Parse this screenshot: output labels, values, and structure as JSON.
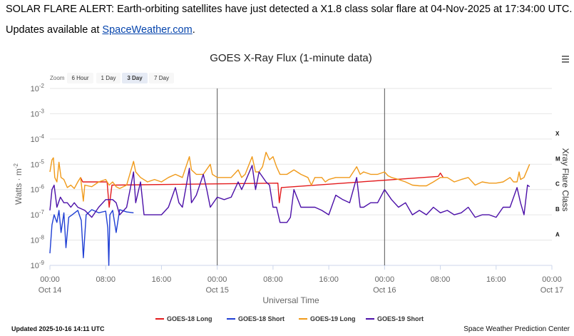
{
  "alert": {
    "text": "SOLAR FLARE ALERT: Earth-orbiting satellites have just detected a X1.8 class solar flare at 04-Nov-2025 at 17:34:00 UTC."
  },
  "updates": {
    "prefix": "Updates available at ",
    "link_text": "SpaceWeather.com",
    "suffix": "."
  },
  "zoom": {
    "label": "Zoom",
    "buttons": [
      "6 Hour",
      "1 Day",
      "3 Day",
      "7 Day"
    ],
    "selected": "3 Day"
  },
  "menu_icon": "hamburger-menu-icon",
  "footer": {
    "updated": "Updated 2025-10-16 14:11 UTC",
    "credit": "Space Weather Prediction Center"
  },
  "chart_data": {
    "type": "line",
    "title": "GOES X-Ray Flux (1-minute data)",
    "xlabel": "Universal Time",
    "ylabel": "Watts · m",
    "ylabel_superscript": "-2",
    "ylabel_right": "Xray Flare Class",
    "y_scale": "log",
    "ylim": [
      1e-09,
      0.01
    ],
    "y_ticks": [
      {
        "base": "10",
        "exp": "-2"
      },
      {
        "base": "10",
        "exp": "-3"
      },
      {
        "base": "10",
        "exp": "-4"
      },
      {
        "base": "10",
        "exp": "-5"
      },
      {
        "base": "10",
        "exp": "-6"
      },
      {
        "base": "10",
        "exp": "-7"
      },
      {
        "base": "10",
        "exp": "-8"
      },
      {
        "base": "10",
        "exp": "-9"
      }
    ],
    "x_unit": "hours since 2025-10-14 00:00 UTC",
    "xlim": [
      0,
      72
    ],
    "x_ticks": [
      {
        "hour": 0,
        "time": "00:00",
        "date": "Oct 14"
      },
      {
        "hour": 8,
        "time": "08:00",
        "date": ""
      },
      {
        "hour": 16,
        "time": "16:00",
        "date": ""
      },
      {
        "hour": 24,
        "time": "00:00",
        "date": "Oct 15"
      },
      {
        "hour": 32,
        "time": "08:00",
        "date": ""
      },
      {
        "hour": 40,
        "time": "16:00",
        "date": ""
      },
      {
        "hour": 48,
        "time": "00:00",
        "date": "Oct 16"
      },
      {
        "hour": 56,
        "time": "08:00",
        "date": ""
      },
      {
        "hour": 64,
        "time": "16:00",
        "date": ""
      },
      {
        "hour": 72,
        "time": "00:00",
        "date": "Oct 17"
      }
    ],
    "day_dividers": [
      24,
      48
    ],
    "flare_classes": [
      {
        "label": "X",
        "flux": 0.0001
      },
      {
        "label": "M",
        "flux": 1e-05
      },
      {
        "label": "C",
        "flux": 1e-06
      },
      {
        "label": "B",
        "flux": 1e-07
      },
      {
        "label": "A",
        "flux": 1e-08
      }
    ],
    "series": [
      {
        "name": "GOES-18 Long",
        "color": "#e31a1c",
        "points": [
          [
            4.4,
            3e-06
          ],
          [
            4.7,
            2e-06
          ],
          [
            8.2,
            2e-06
          ],
          [
            8.5,
            2e-07
          ],
          [
            8.9,
            1.5e-06
          ],
          [
            32.7,
            1.8e-06
          ],
          [
            32.9,
            3e-07
          ],
          [
            33.2,
            1.2e-06
          ],
          [
            55.7,
            3.3e-06
          ],
          [
            56.0,
            4.5e-06
          ],
          [
            56.4,
            3e-06
          ]
        ]
      },
      {
        "name": "GOES-18 Short",
        "color": "#1f3fd4",
        "points": [
          [
            0.0,
            3e-09
          ],
          [
            0.3,
            4e-08
          ],
          [
            0.6,
            1e-07
          ],
          [
            1.0,
            5e-08
          ],
          [
            1.3,
            1.5e-07
          ],
          [
            1.6,
            2e-08
          ],
          [
            2.0,
            1.2e-07
          ],
          [
            2.3,
            5e-09
          ],
          [
            2.7,
            8e-08
          ],
          [
            3.2,
            1e-07
          ],
          [
            4.0,
            1.5e-07
          ],
          [
            4.5,
            6e-08
          ],
          [
            4.8,
            2e-09
          ],
          [
            5.2,
            1e-07
          ],
          [
            6.0,
            1.6e-07
          ],
          [
            7.0,
            1.2e-07
          ],
          [
            8.0,
            1.4e-07
          ],
          [
            8.3,
            3e-08
          ],
          [
            8.45,
            1e-09
          ],
          [
            8.6,
            1e-07
          ],
          [
            9.0,
            1.5e-07
          ],
          [
            9.5,
            2e-08
          ],
          [
            10.0,
            1.6e-07
          ],
          [
            11.0,
            1.3e-07
          ],
          [
            12.0,
            1.2e-07
          ]
        ]
      },
      {
        "name": "GOES-19 Long",
        "color": "#f09a1a",
        "points": [
          [
            0.0,
            5e-06
          ],
          [
            0.3,
            1.5e-05
          ],
          [
            0.5,
            1.8e-05
          ],
          [
            0.7,
            3e-06
          ],
          [
            1.0,
            2e-06
          ],
          [
            1.3,
            1.2e-05
          ],
          [
            1.6,
            3e-06
          ],
          [
            2.0,
            2.5e-06
          ],
          [
            2.5,
            1.2e-06
          ],
          [
            3.0,
            1.5e-06
          ],
          [
            3.5,
            1.1e-06
          ],
          [
            4.0,
            2e-06
          ],
          [
            4.4,
            3e-06
          ],
          [
            4.8,
            3.5e-07
          ],
          [
            5.0,
            1.5e-06
          ],
          [
            6.0,
            1.3e-06
          ],
          [
            7.0,
            2e-06
          ],
          [
            8.0,
            2.5e-06
          ],
          [
            8.5,
            1.5e-06
          ],
          [
            9.0,
            2e-06
          ],
          [
            9.5,
            1.3e-06
          ],
          [
            10.0,
            1.1e-06
          ],
          [
            11.0,
            1.5e-06
          ],
          [
            12.0,
            1.3e-05
          ],
          [
            12.3,
            5e-06
          ],
          [
            13.0,
            3e-06
          ],
          [
            14.0,
            2e-06
          ],
          [
            15.0,
            2.5e-06
          ],
          [
            16.0,
            2e-06
          ],
          [
            17.0,
            3e-06
          ],
          [
            18.0,
            4e-06
          ],
          [
            19.0,
            3e-06
          ],
          [
            20.0,
            2e-05
          ],
          [
            20.3,
            6e-06
          ],
          [
            21.0,
            4e-06
          ],
          [
            22.0,
            4e-06
          ],
          [
            23.0,
            1e-05
          ],
          [
            23.3,
            4e-06
          ],
          [
            24.0,
            3e-06
          ],
          [
            25.0,
            3e-06
          ],
          [
            26.0,
            3e-06
          ],
          [
            27.0,
            6e-06
          ],
          [
            27.5,
            3e-06
          ],
          [
            28.0,
            4e-06
          ],
          [
            29.0,
            2e-05
          ],
          [
            29.5,
            5e-06
          ],
          [
            30.0,
            5e-06
          ],
          [
            30.5,
            8e-06
          ],
          [
            31.0,
            3e-05
          ],
          [
            31.5,
            1.5e-05
          ],
          [
            32.0,
            2e-05
          ],
          [
            32.5,
            8e-06
          ],
          [
            33.0,
            4e-06
          ],
          [
            34.0,
            4e-06
          ],
          [
            35.0,
            6e-06
          ],
          [
            36.0,
            4e-06
          ],
          [
            37.0,
            3e-06
          ],
          [
            37.5,
            1.5e-06
          ],
          [
            38.0,
            3e-06
          ],
          [
            39.0,
            3e-06
          ],
          [
            39.5,
            2e-06
          ],
          [
            40.0,
            2.5e-06
          ],
          [
            41.0,
            3e-06
          ],
          [
            42.0,
            3e-06
          ],
          [
            43.0,
            3e-06
          ],
          [
            44.0,
            8e-06
          ],
          [
            44.5,
            4e-06
          ],
          [
            45.0,
            5e-06
          ],
          [
            46.0,
            4e-06
          ],
          [
            47.0,
            4e-06
          ],
          [
            48.0,
            5e-06
          ],
          [
            48.5,
            3.5e-06
          ],
          [
            49.0,
            3e-06
          ],
          [
            50.0,
            2.5e-06
          ],
          [
            51.0,
            2e-06
          ],
          [
            52.0,
            1.5e-06
          ],
          [
            53.0,
            1.4e-06
          ],
          [
            54.0,
            1.4e-06
          ],
          [
            55.0,
            2e-06
          ],
          [
            56.0,
            3e-06
          ],
          [
            57.0,
            3e-06
          ],
          [
            58.0,
            2e-06
          ],
          [
            59.0,
            2.5e-06
          ],
          [
            60.0,
            3e-06
          ],
          [
            61.0,
            1.5e-06
          ],
          [
            62.0,
            2e-06
          ],
          [
            63.0,
            1.8e-06
          ],
          [
            64.0,
            1.8e-06
          ],
          [
            65.0,
            2e-06
          ],
          [
            66.0,
            3e-06
          ],
          [
            66.5,
            2e-06
          ],
          [
            67.0,
            2e-06
          ],
          [
            67.3,
            5e-06
          ],
          [
            67.5,
            2.5e-06
          ],
          [
            68.0,
            3e-06
          ],
          [
            68.8,
            1e-05
          ]
        ]
      },
      {
        "name": "GOES-19 Short",
        "color": "#4b0fa8",
        "points": [
          [
            0.0,
            1.5e-07
          ],
          [
            0.3,
            1e-06
          ],
          [
            0.6,
            1.5e-06
          ],
          [
            1.0,
            2e-07
          ],
          [
            1.5,
            5e-07
          ],
          [
            2.0,
            3e-07
          ],
          [
            2.5,
            3e-07
          ],
          [
            3.0,
            2e-07
          ],
          [
            3.5,
            3e-07
          ],
          [
            4.0,
            2e-07
          ],
          [
            5.0,
            1.5e-07
          ],
          [
            6.0,
            8e-08
          ],
          [
            7.0,
            2e-07
          ],
          [
            8.0,
            4e-07
          ],
          [
            9.0,
            4e-07
          ],
          [
            9.5,
            3e-07
          ],
          [
            10.0,
            1e-07
          ],
          [
            11.0,
            2e-07
          ],
          [
            12.0,
            5e-06
          ],
          [
            12.3,
            3e-07
          ],
          [
            13.0,
            2e-06
          ],
          [
            13.5,
            1e-07
          ],
          [
            14.0,
            1e-07
          ],
          [
            15.0,
            1e-07
          ],
          [
            16.0,
            1e-07
          ],
          [
            17.0,
            2e-07
          ],
          [
            18.0,
            1.2e-06
          ],
          [
            18.5,
            3e-07
          ],
          [
            19.0,
            2e-07
          ],
          [
            20.0,
            7e-06
          ],
          [
            20.3,
            3e-07
          ],
          [
            21.0,
            6e-07
          ],
          [
            22.0,
            4e-06
          ],
          [
            22.5,
            1e-06
          ],
          [
            23.0,
            2e-07
          ],
          [
            24.0,
            5e-07
          ],
          [
            25.0,
            4e-07
          ],
          [
            26.0,
            5e-07
          ],
          [
            27.0,
            2e-06
          ],
          [
            27.5,
            1e-06
          ],
          [
            28.0,
            2e-06
          ],
          [
            29.0,
            9e-06
          ],
          [
            29.5,
            1e-06
          ],
          [
            30.0,
            5e-06
          ],
          [
            31.0,
            2e-06
          ],
          [
            31.5,
            1.5e-06
          ],
          [
            32.0,
            2e-07
          ],
          [
            32.5,
            2e-07
          ],
          [
            33.0,
            5e-08
          ],
          [
            34.0,
            5e-08
          ],
          [
            34.5,
            8e-08
          ],
          [
            35.0,
            1e-06
          ],
          [
            36.0,
            2e-07
          ],
          [
            37.0,
            2e-07
          ],
          [
            38.0,
            2e-07
          ],
          [
            39.0,
            1.5e-07
          ],
          [
            40.0,
            1e-07
          ],
          [
            41.0,
            6e-07
          ],
          [
            42.0,
            4e-07
          ],
          [
            43.0,
            3e-07
          ],
          [
            44.0,
            3e-06
          ],
          [
            44.5,
            2e-07
          ],
          [
            45.0,
            2e-07
          ],
          [
            46.0,
            3e-07
          ],
          [
            47.0,
            3e-07
          ],
          [
            48.0,
            1e-06
          ],
          [
            49.0,
            4e-07
          ],
          [
            50.0,
            2e-07
          ],
          [
            51.0,
            3e-07
          ],
          [
            52.0,
            1e-07
          ],
          [
            53.0,
            1.5e-07
          ],
          [
            54.0,
            1e-07
          ],
          [
            55.0,
            2e-07
          ],
          [
            56.0,
            1.2e-07
          ],
          [
            57.0,
            1.5e-07
          ],
          [
            58.0,
            1e-07
          ],
          [
            59.0,
            1.2e-07
          ],
          [
            60.0,
            2e-07
          ],
          [
            61.0,
            8e-08
          ],
          [
            62.0,
            1e-07
          ],
          [
            63.0,
            1e-07
          ],
          [
            64.0,
            8e-08
          ],
          [
            65.0,
            2e-07
          ],
          [
            66.0,
            2e-07
          ],
          [
            67.0,
            1.2e-06
          ],
          [
            67.5,
            3e-07
          ],
          [
            68.0,
            1e-07
          ],
          [
            68.5,
            1.5e-06
          ],
          [
            68.8,
            1.3e-06
          ]
        ]
      }
    ]
  }
}
